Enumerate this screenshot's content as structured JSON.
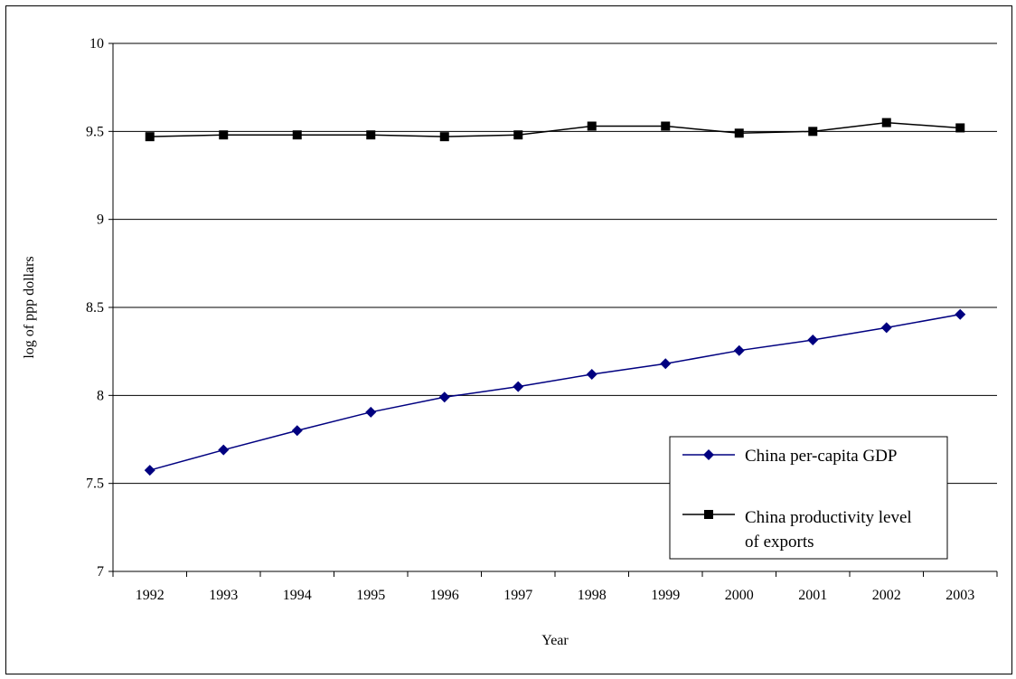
{
  "chart_data": {
    "type": "line",
    "title": "",
    "xlabel": "Year",
    "ylabel": "log of ppp dollars",
    "categories": [
      "1992",
      "1993",
      "1994",
      "1995",
      "1996",
      "1997",
      "1998",
      "1999",
      "2000",
      "2001",
      "2002",
      "2003"
    ],
    "ylim": [
      7,
      10
    ],
    "yticks": [
      "7",
      "7.5",
      "8",
      "8.5",
      "9",
      "9.5",
      "10"
    ],
    "grid": true,
    "legend_position": "bottom-right",
    "series": [
      {
        "name": "China per-capita GDP",
        "marker": "diamond",
        "color": "#000080",
        "values": [
          7.575,
          7.69,
          7.8,
          7.905,
          7.99,
          8.05,
          8.12,
          8.18,
          8.255,
          8.315,
          8.385,
          8.46
        ]
      },
      {
        "name": "China productivity level of exports",
        "marker": "square",
        "color": "#000000",
        "values": [
          9.47,
          9.48,
          9.48,
          9.48,
          9.47,
          9.48,
          9.53,
          9.53,
          9.49,
          9.5,
          9.55,
          9.52
        ]
      }
    ]
  },
  "legend": {
    "line1_a": "China per-capita GDP",
    "line2_a": "China productivity level",
    "line2_b": "of exports"
  }
}
